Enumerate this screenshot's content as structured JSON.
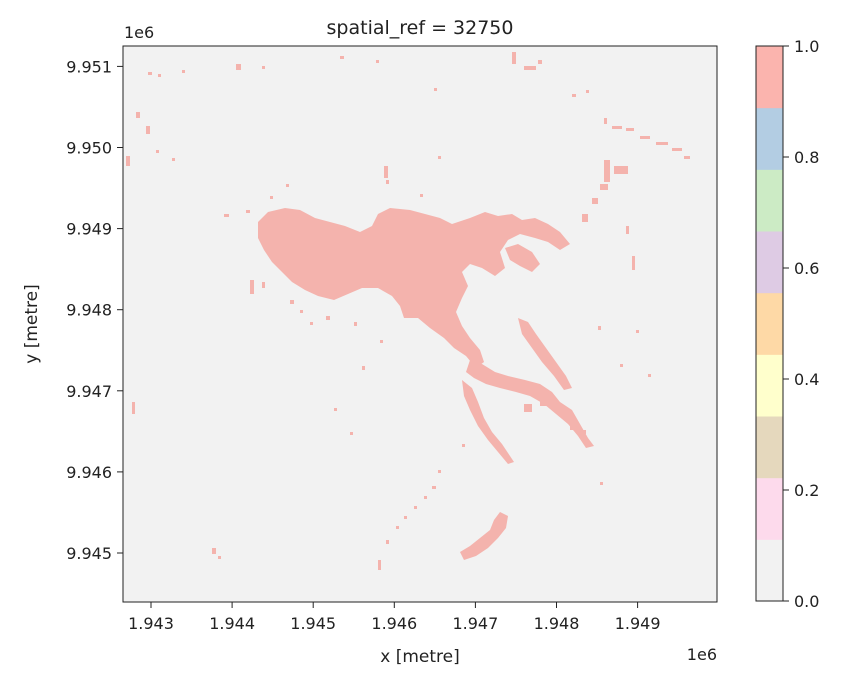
{
  "chart_data": {
    "type": "heatmap",
    "title": "spatial_ref = 32750",
    "xlabel": "x [metre]",
    "ylabel": "y [metre]",
    "x_offset_label": "1e6",
    "y_offset_label": "1e6",
    "x_ticks": [
      "1.943",
      "1.944",
      "1.945",
      "1.946",
      "1.947",
      "1.948",
      "1.949"
    ],
    "y_ticks": [
      "9.945",
      "9.946",
      "9.947",
      "9.948",
      "9.949",
      "9.950",
      "9.951"
    ],
    "colorbar": {
      "range": [
        0.0,
        1.0
      ],
      "ticks": [
        "0.0",
        "0.2",
        "0.4",
        "0.6",
        "0.8",
        "1.0"
      ],
      "colormap": "Pastel1",
      "colors": [
        "#f2f2f2",
        "#fddaec",
        "#e5d8bd",
        "#ffffcc",
        "#fed9a6",
        "#decbe4",
        "#ccebc5",
        "#b3cde3",
        "#fbb4ae"
      ]
    },
    "background_value": 0.0,
    "feature_value": 1.0,
    "background_color": "#f2f2f2",
    "feature_color": "#f4b3ad",
    "grid": false
  }
}
